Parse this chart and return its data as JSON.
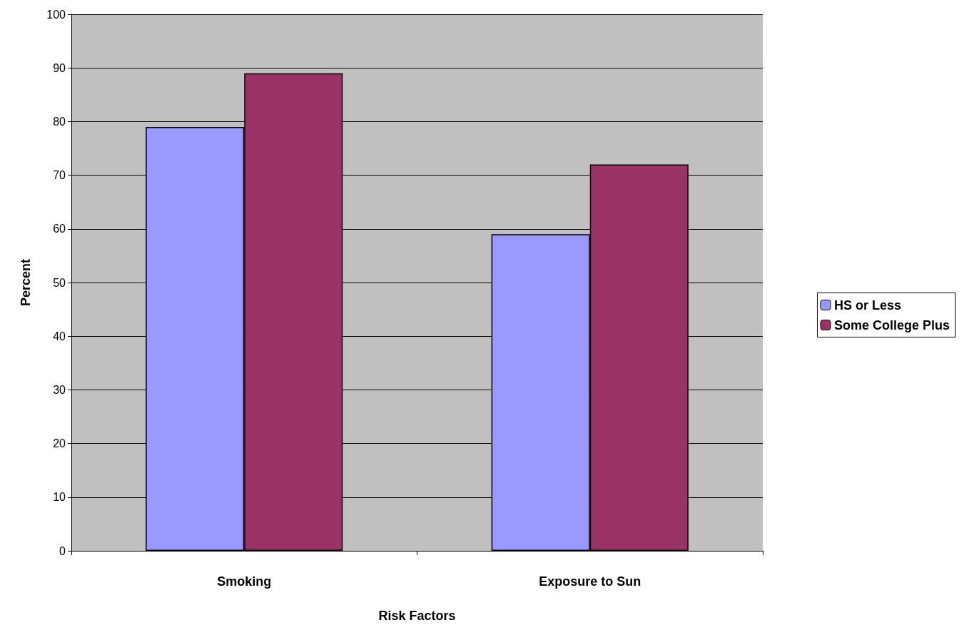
{
  "chart_data": {
    "type": "bar",
    "xlabel": "Risk Factors",
    "ylabel": "Percent",
    "categories": [
      "Smoking",
      "Exposure to Sun"
    ],
    "series": [
      {
        "name": "HS or Less",
        "color": "#9999ff",
        "values": [
          79,
          59
        ]
      },
      {
        "name": "Some College Plus",
        "color": "#993366",
        "values": [
          89,
          72
        ]
      }
    ],
    "ylim": [
      0,
      100
    ],
    "yticks": [
      0,
      10,
      20,
      30,
      40,
      50,
      60,
      70,
      80,
      90,
      100
    ],
    "grid": "y",
    "legend": "right"
  }
}
